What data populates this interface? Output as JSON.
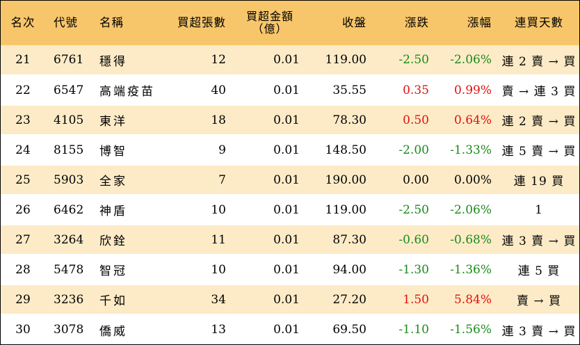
{
  "headers": {
    "rank": "名次",
    "code": "代號",
    "name": "名稱",
    "net_buy_shares": "買超張數",
    "net_buy_amount_line1": "買超金額",
    "net_buy_amount_line2": "（億）",
    "close": "收盤",
    "change": "漲跌",
    "change_pct": "漲幅",
    "consecutive_days": "連買天數"
  },
  "colors": {
    "header_bg": "#f8c66a",
    "odd_row_bg": "#fdebc7",
    "even_row_bg": "#ffffff",
    "negative": "#1a8a1a",
    "positive": "#e01010",
    "neutral": "#000000"
  },
  "rows": [
    {
      "rank": "21",
      "code": "6761",
      "name": "穩得",
      "shares": "12",
      "amount": "0.01",
      "close": "119.00",
      "change": "-2.50",
      "pct": "-2.06%",
      "days": "連 2 賣 → 買",
      "trend": "down"
    },
    {
      "rank": "22",
      "code": "6547",
      "name": "高端疫苗",
      "shares": "40",
      "amount": "0.01",
      "close": "35.55",
      "change": "0.35",
      "pct": "0.99%",
      "days": "賣 → 連 3 買",
      "trend": "up"
    },
    {
      "rank": "23",
      "code": "4105",
      "name": "東洋",
      "shares": "18",
      "amount": "0.01",
      "close": "78.30",
      "change": "0.50",
      "pct": "0.64%",
      "days": "連 2 賣 → 買",
      "trend": "up"
    },
    {
      "rank": "24",
      "code": "8155",
      "name": "博智",
      "shares": "9",
      "amount": "0.01",
      "close": "148.50",
      "change": "-2.00",
      "pct": "-1.33%",
      "days": "連 5 賣 → 買",
      "trend": "down"
    },
    {
      "rank": "25",
      "code": "5903",
      "name": "全家",
      "shares": "7",
      "amount": "0.01",
      "close": "190.00",
      "change": "0.00",
      "pct": "0.00%",
      "days": "連 19 買",
      "trend": "flat"
    },
    {
      "rank": "26",
      "code": "6462",
      "name": "神盾",
      "shares": "10",
      "amount": "0.01",
      "close": "119.00",
      "change": "-2.50",
      "pct": "-2.06%",
      "days": "1",
      "trend": "down"
    },
    {
      "rank": "27",
      "code": "3264",
      "name": "欣銓",
      "shares": "11",
      "amount": "0.01",
      "close": "87.30",
      "change": "-0.60",
      "pct": "-0.68%",
      "days": "連 3 賣 → 買",
      "trend": "down"
    },
    {
      "rank": "28",
      "code": "5478",
      "name": "智冠",
      "shares": "10",
      "amount": "0.01",
      "close": "94.00",
      "change": "-1.30",
      "pct": "-1.36%",
      "days": "連 5 買",
      "trend": "down"
    },
    {
      "rank": "29",
      "code": "3236",
      "name": "千如",
      "shares": "34",
      "amount": "0.01",
      "close": "27.20",
      "change": "1.50",
      "pct": "5.84%",
      "days": "賣 → 買",
      "trend": "up"
    },
    {
      "rank": "30",
      "code": "3078",
      "name": "僑威",
      "shares": "13",
      "amount": "0.01",
      "close": "69.50",
      "change": "-1.10",
      "pct": "-1.56%",
      "days": "連 3 賣 → 買",
      "trend": "down"
    }
  ]
}
